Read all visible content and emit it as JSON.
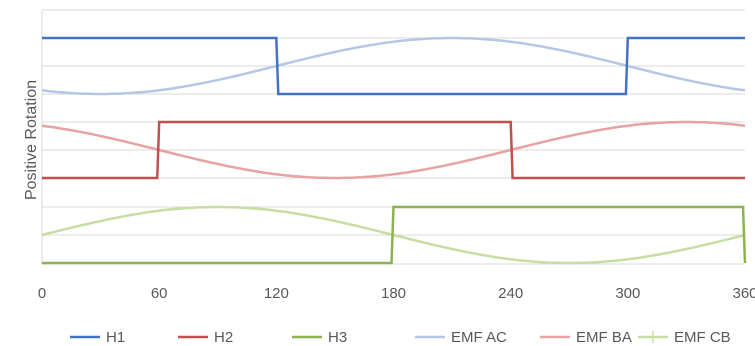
{
  "chart_data": {
    "type": "line",
    "title": "",
    "xlabel": "",
    "ylabel": "Positive Rotation",
    "xlim": [
      0,
      360
    ],
    "x_ticks": [
      "0",
      "60",
      "120",
      "180",
      "240",
      "300",
      "360"
    ],
    "grid": "horizontal",
    "legend_position": "bottom",
    "series": [
      {
        "name": "H1",
        "kind": "step",
        "color": "#4472c4",
        "points": [
          [
            0,
            1
          ],
          [
            120,
            1
          ],
          [
            121,
            0
          ],
          [
            299,
            0
          ],
          [
            300,
            1
          ],
          [
            360,
            1
          ]
        ]
      },
      {
        "name": "H2",
        "kind": "step",
        "color": "#c0504d",
        "points": [
          [
            0,
            0
          ],
          [
            59,
            0
          ],
          [
            60,
            1
          ],
          [
            240,
            1
          ],
          [
            241,
            0
          ],
          [
            360,
            0
          ]
        ]
      },
      {
        "name": "H3",
        "kind": "step",
        "color": "#8cb34f",
        "points": [
          [
            0,
            0
          ],
          [
            179,
            0
          ],
          [
            180,
            1
          ],
          [
            359,
            1
          ],
          [
            360,
            0
          ]
        ]
      },
      {
        "name": "EMF AC",
        "kind": "sine",
        "color": "#b4c7e7",
        "phase_deg": 30
      },
      {
        "name": "EMF BA",
        "kind": "sine",
        "color": "#e6a3a1",
        "phase_deg": 150
      },
      {
        "name": "EMF CB",
        "kind": "sine",
        "color": "#c6dea3",
        "phase_deg": 270
      }
    ]
  }
}
